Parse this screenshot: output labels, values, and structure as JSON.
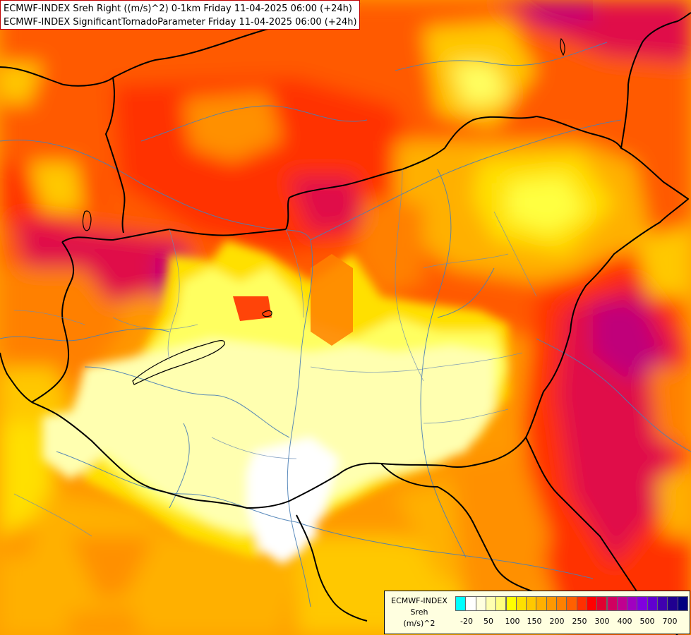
{
  "title": {
    "line1": "ECMWF-INDEX Sreh Right ((m/s)^2) 0-1km Friday 11-04-2025 06:00 (+24h)",
    "line2": "ECMWF-INDEX SignificantTornadoParameter Friday 11-04-2025 06:00 (+24h)"
  },
  "legend": {
    "line1": "ECMWF-INDEX",
    "line2": "Sreh",
    "line3": "(m/s)^2",
    "colors": [
      "#00ffff",
      "#ffffff",
      "#ffffe0",
      "#ffffb0",
      "#ffff80",
      "#ffff00",
      "#ffe000",
      "#ffc800",
      "#ffb000",
      "#ff9800",
      "#ff8000",
      "#ff6000",
      "#ff3000",
      "#ff0000",
      "#e00030",
      "#d00060",
      "#c00090",
      "#a000c0",
      "#8000e0",
      "#6000d0",
      "#4000b0",
      "#200090",
      "#000080"
    ],
    "ticks": [
      "-20",
      "50",
      "100",
      "150",
      "200",
      "250",
      "300",
      "400",
      "500",
      "700"
    ]
  },
  "colors": {
    "border": "#000000",
    "river": "#4a7fb5"
  }
}
